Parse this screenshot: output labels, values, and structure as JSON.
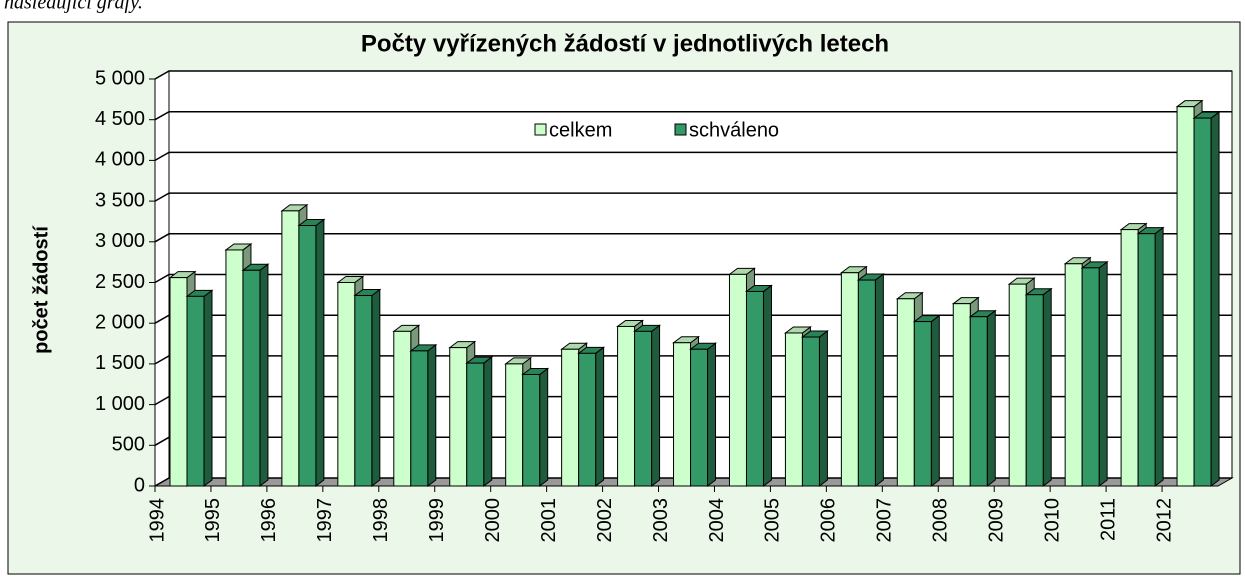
{
  "caption": "následující grafy.",
  "chart_data": {
    "type": "bar3d",
    "title": "Počty vyřízených žádostí v jednotlivých letech",
    "y_label": "počet žádostí",
    "categories": [
      "1994",
      "1995",
      "1996",
      "1997",
      "1998",
      "1999",
      "2000",
      "2001",
      "2002",
      "2003",
      "2004",
      "2005",
      "2006",
      "2007",
      "2008",
      "2009",
      "2010",
      "2011",
      "2012"
    ],
    "series": [
      {
        "name": "celkem",
        "color": "#ccffcc",
        "values": [
          2560,
          2900,
          3380,
          2500,
          1900,
          1700,
          1500,
          1680,
          1960,
          1760,
          2600,
          1880,
          2620,
          2300,
          2240,
          2480,
          2730,
          3150,
          4660
        ]
      },
      {
        "name": "schváleno",
        "color": "#339966",
        "values": [
          2330,
          2650,
          3200,
          2340,
          1660,
          1510,
          1370,
          1630,
          1900,
          1680,
          2390,
          1830,
          2530,
          2020,
          2080,
          2350,
          2680,
          3100,
          4520
        ]
      }
    ],
    "ylim": [
      0,
      5000
    ],
    "yticks": [
      0,
      500,
      {
        "value": 1000,
        "label": "1 000"
      },
      {
        "value": 1500,
        "label": "1 500"
      },
      {
        "value": 2000,
        "label": "2 000"
      },
      {
        "value": 2500,
        "label": "2 500"
      },
      {
        "value": 3000,
        "label": "3 000"
      },
      {
        "value": 3500,
        "label": "3 500"
      },
      {
        "value": 4000,
        "label": "4 000"
      },
      {
        "value": 4500,
        "label": "4 500"
      },
      {
        "value": 5000,
        "label": "5 000"
      }
    ],
    "grid": true,
    "legend": "top"
  }
}
